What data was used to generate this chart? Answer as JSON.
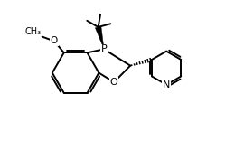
{
  "background": "#ffffff",
  "line_color": "#000000",
  "lw": 1.4,
  "fs": 7.5,
  "figsize": [
    2.6,
    1.56
  ],
  "dpi": 100,
  "xlim": [
    0.0,
    10.0
  ],
  "ylim": [
    0.0,
    6.0
  ]
}
